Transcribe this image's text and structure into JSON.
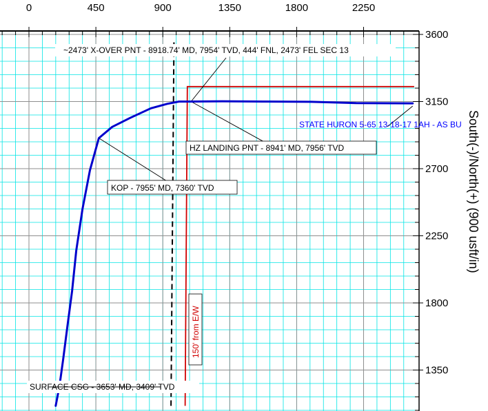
{
  "chart_data": {
    "type": "line",
    "ylabel": "South(-)/North(+) (900 usft/in)",
    "x_ticks": [
      "0",
      "450",
      "900",
      "1350",
      "1800",
      "2250"
    ],
    "y_ticks": [
      "3600",
      "3150",
      "2700",
      "2250",
      "1800",
      "1350"
    ],
    "xlim": [
      -210,
      2600
    ],
    "ylim": [
      1100,
      3660
    ],
    "grid": true,
    "series": [
      {
        "name": "STATE HURON 5-65 13-18-17 1AH - AS BU",
        "color": "#0000cc",
        "points": [
          [
            180,
            1110
          ],
          [
            205,
            1240
          ],
          [
            230,
            1420
          ],
          [
            258,
            1640
          ],
          [
            290,
            1880
          ],
          [
            318,
            2150
          ],
          [
            360,
            2430
          ],
          [
            410,
            2690
          ],
          [
            470,
            2905
          ],
          [
            560,
            2980
          ],
          [
            680,
            3040
          ],
          [
            820,
            3105
          ],
          [
            930,
            3135
          ],
          [
            1010,
            3150
          ],
          [
            1090,
            3150
          ],
          [
            1300,
            3152
          ],
          [
            1600,
            3150
          ],
          [
            1900,
            3148
          ],
          [
            2200,
            3140
          ],
          [
            2580,
            3138
          ]
        ]
      }
    ],
    "lease_line": {
      "label": "150' from E/W",
      "color": "#d00000",
      "points": [
        [
          1050,
          1110
        ],
        [
          1065,
          3250
        ],
        [
          2590,
          3250
        ]
      ]
    },
    "dashed_line": {
      "color": "#000000",
      "points": [
        [
          955,
          1110
        ],
        [
          975,
          3560
        ]
      ]
    },
    "annotations": [
      {
        "text": "~2473' X-OVER PNT - 8918.74' MD, 7954' TVD, 444' FNL, 2473' FEL SEC 13"
      },
      {
        "text": "HZ LANDING PNT - 8941' MD, 7956' TVD"
      },
      {
        "text": "KOP - 7955' MD, 7360' TVD"
      },
      {
        "text": "SURFACE CSG - 3653' MD, 3409' TVD"
      }
    ],
    "colors": {
      "grid_major": "#8e8e8e",
      "grid_minor": "#00e5e5"
    }
  }
}
